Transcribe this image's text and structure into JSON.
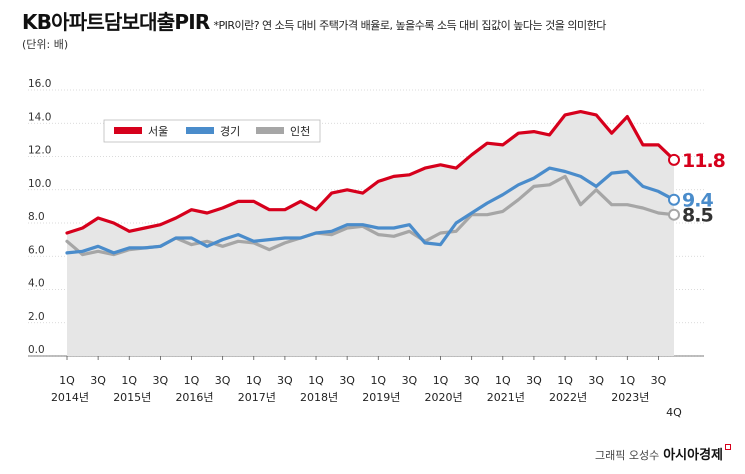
{
  "header": {
    "title": "KB아파트담보대출PIR",
    "note": "*PIR이란? 연 소득 대비 주택가격 배율로, 높을수록 소득 대비 집값이 높다는 것을 의미한다",
    "unit": "(단위: 배)"
  },
  "credit": {
    "text": "그래픽 오성수",
    "brand": "아시아경제"
  },
  "chart_data": {
    "type": "line",
    "ylim": [
      0,
      16
    ],
    "yticks": [
      "0.0",
      "2.0",
      "4.0",
      "6.0",
      "8.0",
      "10.0",
      "12.0",
      "14.0",
      "16.0"
    ],
    "x": [
      "2014 1Q",
      "2014 2Q",
      "2014 3Q",
      "2014 4Q",
      "2015 1Q",
      "2015 2Q",
      "2015 3Q",
      "2015 4Q",
      "2016 1Q",
      "2016 2Q",
      "2016 3Q",
      "2016 4Q",
      "2017 1Q",
      "2017 2Q",
      "2017 3Q",
      "2017 4Q",
      "2018 1Q",
      "2018 2Q",
      "2018 3Q",
      "2018 4Q",
      "2019 1Q",
      "2019 2Q",
      "2019 3Q",
      "2019 4Q",
      "2020 1Q",
      "2020 2Q",
      "2020 3Q",
      "2020 4Q",
      "2021 1Q",
      "2021 2Q",
      "2021 3Q",
      "2021 4Q",
      "2022 1Q",
      "2022 2Q",
      "2022 3Q",
      "2022 4Q",
      "2023 1Q",
      "2023 2Q",
      "2023 3Q",
      "2023 4Q"
    ],
    "tick_quarters": [
      "1Q",
      "3Q",
      "1Q",
      "3Q",
      "1Q",
      "3Q",
      "1Q",
      "3Q",
      "1Q",
      "3Q",
      "1Q",
      "3Q",
      "1Q",
      "3Q",
      "1Q",
      "3Q",
      "1Q",
      "3Q",
      "1Q",
      "3Q"
    ],
    "tick_years": [
      "2014년",
      "2015년",
      "2016년",
      "2017년",
      "2018년",
      "2019년",
      "2020년",
      "2021년",
      "2022년",
      "2023년"
    ],
    "last_label": "4Q",
    "legend_position": "top-left",
    "series": [
      {
        "name": "서울",
        "color": "#d6001c",
        "end_label": "11.8",
        "values": [
          7.4,
          7.7,
          8.3,
          8.0,
          7.5,
          7.7,
          7.9,
          8.3,
          8.8,
          8.6,
          8.9,
          9.3,
          9.3,
          8.8,
          8.8,
          9.3,
          8.8,
          9.8,
          10.0,
          9.8,
          10.5,
          10.8,
          10.9,
          11.3,
          11.5,
          11.3,
          12.1,
          12.8,
          12.7,
          13.4,
          13.5,
          13.3,
          14.5,
          14.7,
          14.5,
          13.4,
          14.4,
          12.7,
          12.7,
          11.8
        ]
      },
      {
        "name": "경기",
        "color": "#4a8ccb",
        "end_label": "9.4",
        "values": [
          6.2,
          6.3,
          6.6,
          6.2,
          6.5,
          6.5,
          6.6,
          7.1,
          7.1,
          6.6,
          7.0,
          7.3,
          6.9,
          7.0,
          7.1,
          7.1,
          7.4,
          7.5,
          7.9,
          7.9,
          7.7,
          7.7,
          7.9,
          6.8,
          6.7,
          8.0,
          8.6,
          9.2,
          9.7,
          10.3,
          10.7,
          11.3,
          11.1,
          10.8,
          10.2,
          11.0,
          11.1,
          10.2,
          9.9,
          9.4
        ]
      },
      {
        "name": "인천",
        "color": "#a6a6a6",
        "end_label": "8.5",
        "values": [
          6.9,
          6.1,
          6.3,
          6.1,
          6.4,
          6.5,
          6.6,
          7.1,
          6.7,
          6.9,
          6.6,
          6.9,
          6.8,
          6.4,
          6.8,
          7.1,
          7.4,
          7.3,
          7.7,
          7.8,
          7.3,
          7.2,
          7.5,
          6.9,
          7.4,
          7.5,
          8.5,
          8.5,
          8.7,
          9.4,
          10.2,
          10.3,
          10.8,
          9.1,
          10.0,
          9.1,
          9.1,
          8.9,
          8.6,
          8.5
        ]
      }
    ]
  }
}
